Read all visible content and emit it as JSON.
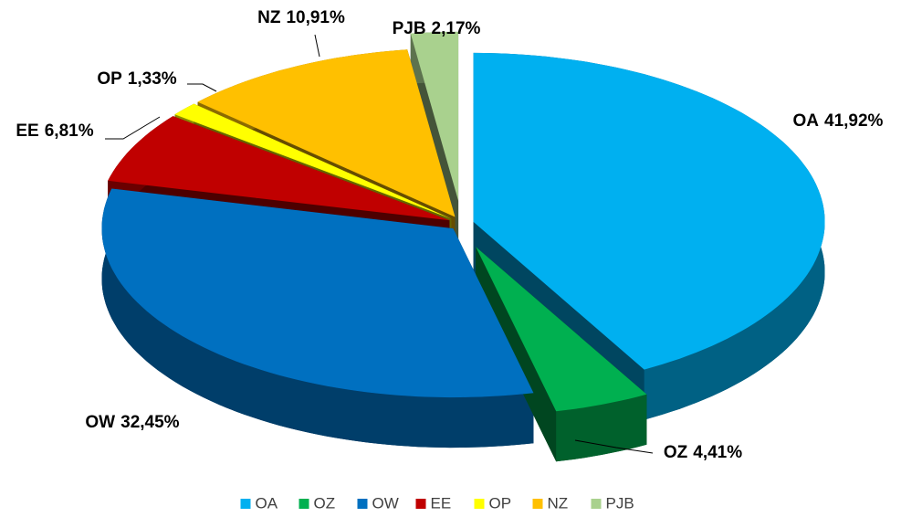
{
  "chart_data": {
    "type": "pie",
    "categories": [
      "OA",
      "OZ",
      "OW",
      "EE",
      "OP",
      "NZ",
      "PJB"
    ],
    "values": [
      41.92,
      4.41,
      32.45,
      6.81,
      1.33,
      10.91,
      2.17
    ],
    "value_labels": [
      "41,92%",
      "4,41%",
      "32,45%",
      "6,81%",
      "1,33%",
      "10,91%",
      "2,17%"
    ],
    "colors": [
      "#00b0f0",
      "#00b050",
      "#0070c0",
      "#c00000",
      "#ffff00",
      "#ffc000",
      "#a9d18e"
    ],
    "legend": "bottom"
  }
}
